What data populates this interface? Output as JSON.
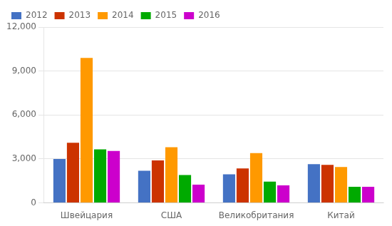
{
  "chart_data": {
    "type": "bar",
    "categories": [
      "Швейцария",
      "США",
      "Великобритания",
      "Китай"
    ],
    "series": [
      {
        "name": "2012",
        "color": "#4472c4",
        "values": [
          3000,
          2200,
          1950,
          2650
        ]
      },
      {
        "name": "2013",
        "color": "#cc3300",
        "values": [
          4100,
          2900,
          2350,
          2600
        ]
      },
      {
        "name": "2014",
        "color": "#ff9900",
        "values": [
          9900,
          3800,
          3400,
          2450
        ]
      },
      {
        "name": "2015",
        "color": "#00aa00",
        "values": [
          3650,
          1900,
          1450,
          1100
        ]
      },
      {
        "name": "2016",
        "color": "#cc00cc",
        "values": [
          3550,
          1250,
          1200,
          1100
        ]
      }
    ],
    "ylim": [
      0,
      12000
    ],
    "yticks": [
      0,
      {
        "value": 3000,
        "label": "3,000"
      },
      {
        "value": 6000,
        "label": "6,000"
      },
      {
        "value": 9000,
        "label": "9,000"
      },
      {
        "value": 12000,
        "label": "12,000"
      }
    ],
    "grid": true,
    "legend": "upper left"
  }
}
